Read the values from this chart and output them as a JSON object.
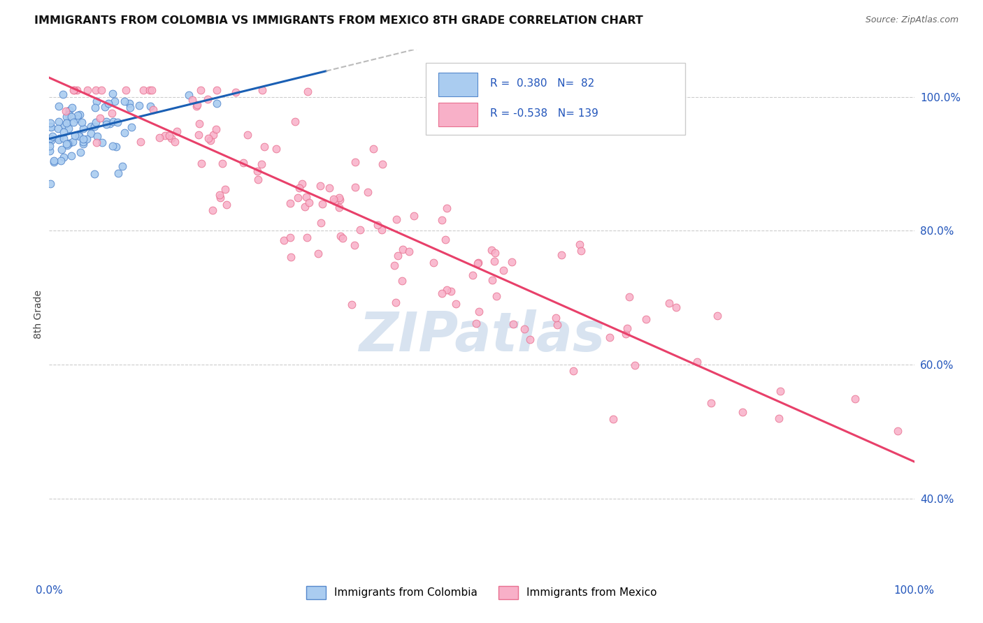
{
  "title": "IMMIGRANTS FROM COLOMBIA VS IMMIGRANTS FROM MEXICO 8TH GRADE CORRELATION CHART",
  "source": "Source: ZipAtlas.com",
  "ylabel": "8th Grade",
  "ytick_labels": [
    "100.0%",
    "80.0%",
    "60.0%",
    "40.0%"
  ],
  "ytick_positions": [
    1.0,
    0.8,
    0.6,
    0.4
  ],
  "legend_label1": "Immigrants from Colombia",
  "legend_label2": "Immigrants from Mexico",
  "r_colombia": 0.38,
  "n_colombia": 82,
  "r_mexico": -0.538,
  "n_mexico": 139,
  "color_colombia": "#aaccf0",
  "color_colombia_edge": "#5588cc",
  "color_colombia_line": "#1a5fb4",
  "color_mexico": "#f8b0c8",
  "color_mexico_edge": "#e87090",
  "color_mexico_line": "#e8406a",
  "color_dash": "#bbbbbb",
  "background_color": "#ffffff",
  "watermark": "ZIPatlas",
  "watermark_color": "#c8d8ea",
  "grid_color": "#cccccc",
  "title_color": "#111111",
  "source_color": "#666666",
  "tick_color": "#2255bb",
  "ylabel_color": "#444444"
}
